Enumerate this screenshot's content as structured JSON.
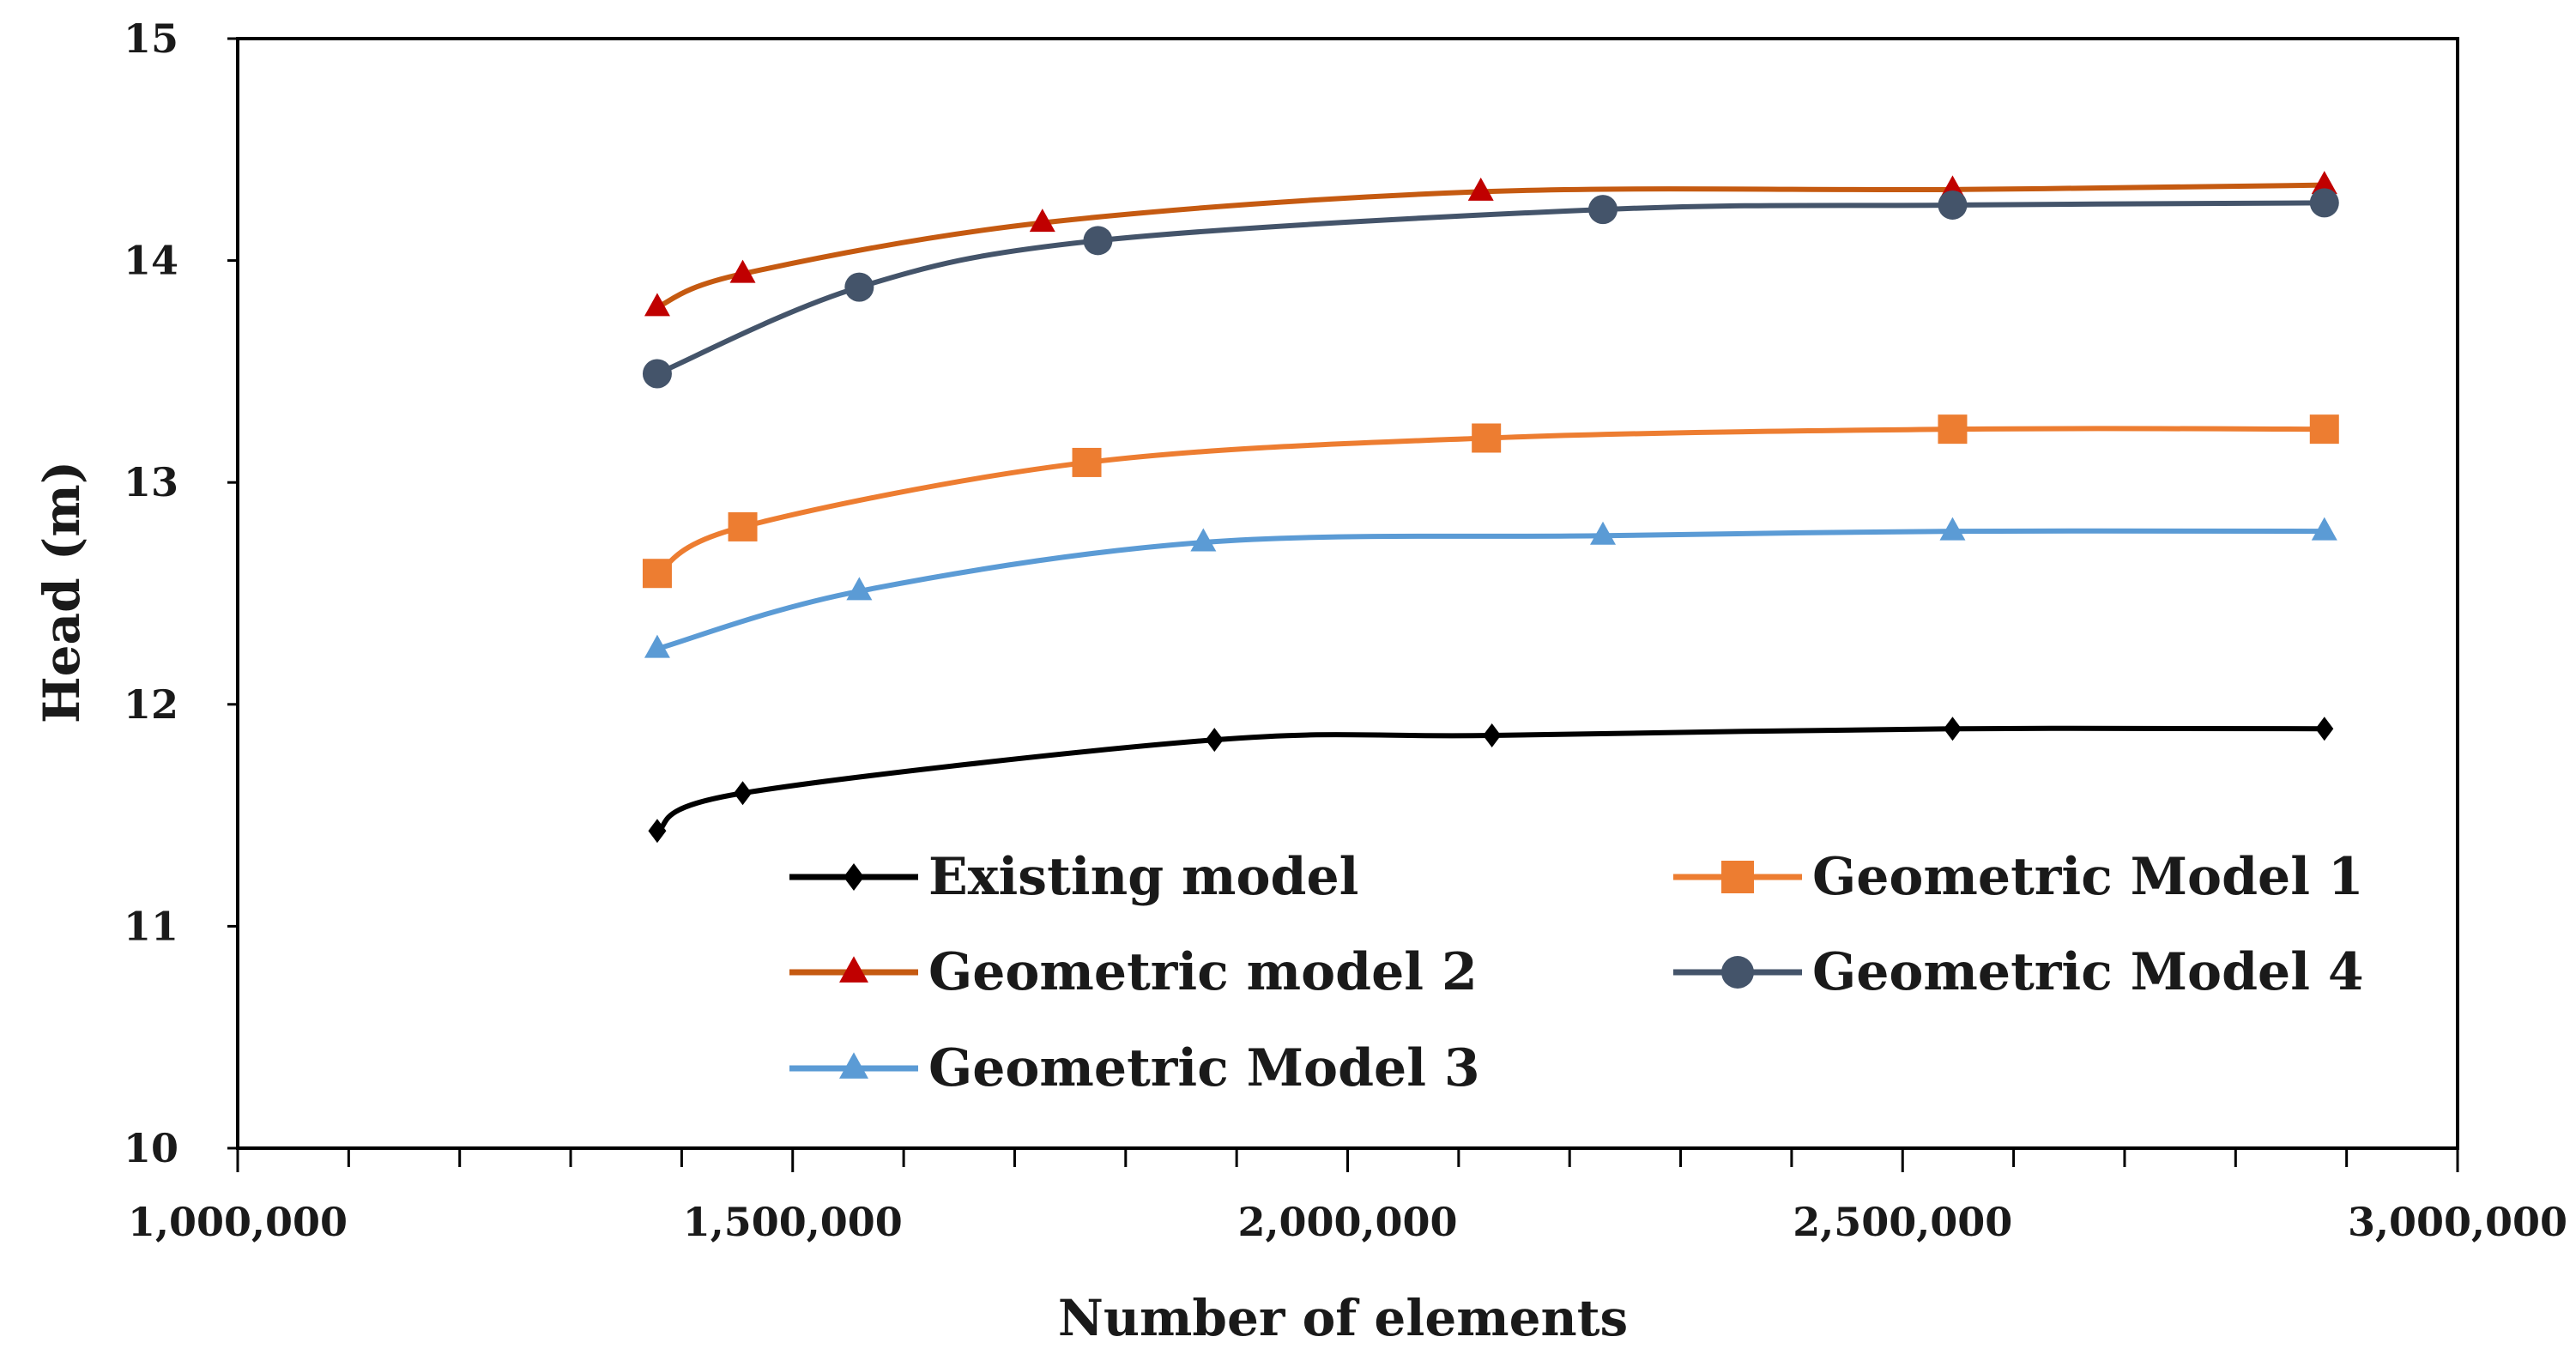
{
  "chart_data": {
    "type": "line",
    "title": "",
    "xlabel": "Number of elements",
    "ylabel": "Head (m)",
    "xlim": [
      1000000,
      3000000
    ],
    "ylim": [
      10,
      15
    ],
    "x_ticks": [
      1000000,
      1500000,
      2000000,
      2500000,
      3000000
    ],
    "x_tick_labels": [
      "1,000,000",
      "1,500,000",
      "2,000,000",
      "2,500,000",
      "3,000,000"
    ],
    "y_ticks": [
      10,
      11,
      12,
      13,
      14,
      15
    ],
    "y_tick_labels": [
      "10",
      "11",
      "12",
      "13",
      "14",
      "15"
    ],
    "grid": false,
    "legend_position": "bottom-center inside plot",
    "series": [
      {
        "name": "Existing model",
        "color": "#000000",
        "marker": "diamond",
        "x": [
          1378000,
          1455000,
          1880000,
          2130000,
          2545000,
          2880000
        ],
        "y": [
          11.43,
          11.6,
          11.84,
          11.86,
          11.89,
          11.89
        ]
      },
      {
        "name": "Geometric Model 1",
        "color": "#ED7D31",
        "marker": "square",
        "x": [
          1378000,
          1455000,
          1765000,
          2125000,
          2545000,
          2880000
        ],
        "y": [
          12.59,
          12.8,
          13.09,
          13.2,
          13.24,
          13.24
        ]
      },
      {
        "name": "Geometric model 2",
        "color": "#C55A11",
        "marker_color": "#C00000",
        "marker": "triangle",
        "x": [
          1378000,
          1455000,
          1725000,
          2120000,
          2545000,
          2880000
        ],
        "y": [
          13.79,
          13.94,
          14.17,
          14.31,
          14.32,
          14.34
        ]
      },
      {
        "name": "Geometric Model 4",
        "color": "#44546A",
        "marker": "circle",
        "x": [
          1378000,
          1560000,
          1775000,
          2230000,
          2545000,
          2880000
        ],
        "y": [
          13.49,
          13.88,
          14.09,
          14.23,
          14.25,
          14.26
        ]
      },
      {
        "name": "Geometric Model 3",
        "color": "#5B9BD5",
        "marker": "triangle",
        "x": [
          1378000,
          1560000,
          1870000,
          2230000,
          2545000,
          2880000
        ],
        "y": [
          12.25,
          12.51,
          12.73,
          12.76,
          12.78,
          12.78
        ]
      }
    ]
  }
}
